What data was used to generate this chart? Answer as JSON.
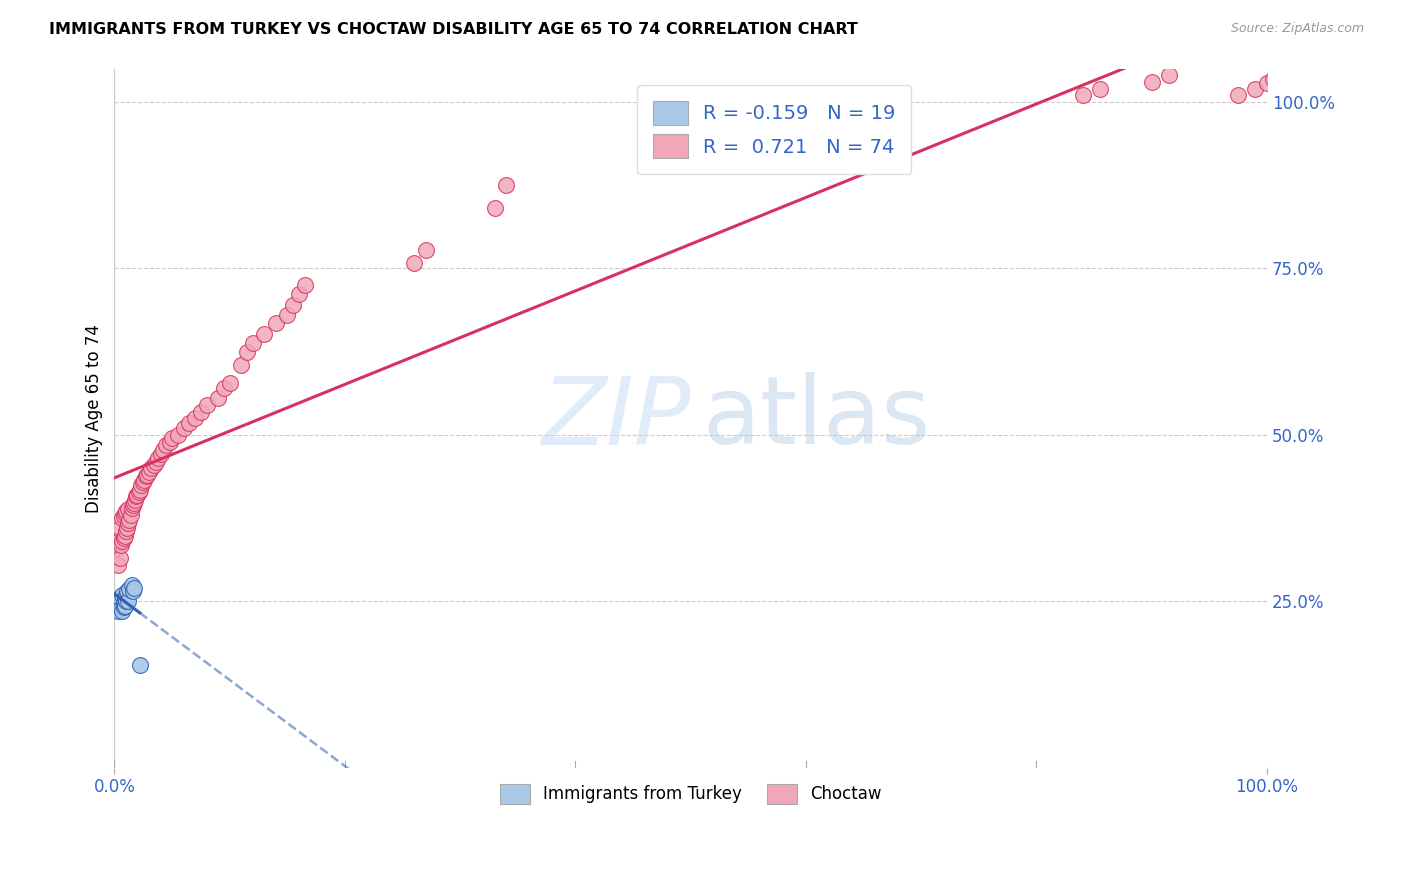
{
  "title": "IMMIGRANTS FROM TURKEY VS CHOCTAW DISABILITY AGE 65 TO 74 CORRELATION CHART",
  "source": "Source: ZipAtlas.com",
  "ylabel": "Disability Age 65 to 74",
  "legend_label1": "Immigrants from Turkey",
  "legend_label2": "Choctaw",
  "color_blue": "#aac8e8",
  "color_pink": "#f0a8b8",
  "line_blue": "#3060b0",
  "line_pink": "#d83060",
  "xlim": [
    0.0,
    100.0
  ],
  "ylim": [
    0.0,
    1.05
  ],
  "yticks": [
    0.25,
    0.5,
    0.75,
    1.0
  ],
  "ytick_labels": [
    "25.0%",
    "50.0%",
    "75.0%",
    "100.0%"
  ],
  "xtick_positions": [
    0.0,
    100.0
  ],
  "xtick_labels": [
    "0.0%",
    "100.0%"
  ],
  "r_blue": -0.159,
  "n_blue": 19,
  "r_pink": 0.721,
  "n_pink": 74,
  "blue_x": [
    0.3,
    0.5,
    0.5,
    0.6,
    0.7,
    0.7,
    0.8,
    0.8,
    0.9,
    0.9,
    1.0,
    1.0,
    1.1,
    1.2,
    1.3,
    1.5,
    1.6,
    1.7,
    2.2
  ],
  "blue_y": [
    0.235,
    0.245,
    0.255,
    0.24,
    0.26,
    0.235,
    0.248,
    0.242,
    0.257,
    0.243,
    0.258,
    0.25,
    0.265,
    0.25,
    0.268,
    0.275,
    0.265,
    0.27,
    0.155
  ],
  "pink_x": [
    0.2,
    0.3,
    0.4,
    0.5,
    0.5,
    0.6,
    0.7,
    0.7,
    0.8,
    0.8,
    0.9,
    0.9,
    1.0,
    1.0,
    1.1,
    1.2,
    1.2,
    1.3,
    1.4,
    1.5,
    1.6,
    1.7,
    1.8,
    1.9,
    2.0,
    2.1,
    2.2,
    2.3,
    2.5,
    2.6,
    2.7,
    2.8,
    3.0,
    3.2,
    3.4,
    3.6,
    3.8,
    4.0,
    4.2,
    4.5,
    4.8,
    5.0,
    5.5,
    6.0,
    6.5,
    7.0,
    7.5,
    8.0,
    9.0,
    9.5,
    10.0,
    11.0,
    11.5,
    12.0,
    13.0,
    14.0,
    15.0,
    15.5,
    16.0,
    16.5,
    26.0,
    27.0,
    33.0,
    34.0,
    53.0,
    54.0,
    84.0,
    85.5,
    90.0,
    91.5,
    97.5,
    99.0,
    100.0,
    100.5
  ],
  "pink_y": [
    0.33,
    0.305,
    0.34,
    0.315,
    0.36,
    0.335,
    0.34,
    0.375,
    0.345,
    0.378,
    0.348,
    0.382,
    0.355,
    0.385,
    0.36,
    0.368,
    0.388,
    0.372,
    0.38,
    0.39,
    0.395,
    0.398,
    0.402,
    0.408,
    0.41,
    0.415,
    0.418,
    0.425,
    0.43,
    0.432,
    0.438,
    0.44,
    0.445,
    0.45,
    0.455,
    0.46,
    0.465,
    0.472,
    0.478,
    0.485,
    0.49,
    0.495,
    0.5,
    0.51,
    0.518,
    0.525,
    0.535,
    0.545,
    0.555,
    0.57,
    0.578,
    0.605,
    0.625,
    0.638,
    0.652,
    0.668,
    0.68,
    0.695,
    0.712,
    0.725,
    0.758,
    0.778,
    0.84,
    0.875,
    0.92,
    0.95,
    1.01,
    1.02,
    1.03,
    1.04,
    1.01,
    1.02,
    1.028,
    1.035
  ],
  "blue_trendline_x": [
    0.0,
    100.0
  ],
  "blue_trendline_y_start": 0.275,
  "blue_trendline_slope": -0.0022,
  "pink_trendline_x": [
    0.0,
    100.0
  ],
  "pink_trendline_y_start": 0.3,
  "pink_trendline_slope": 0.0072
}
